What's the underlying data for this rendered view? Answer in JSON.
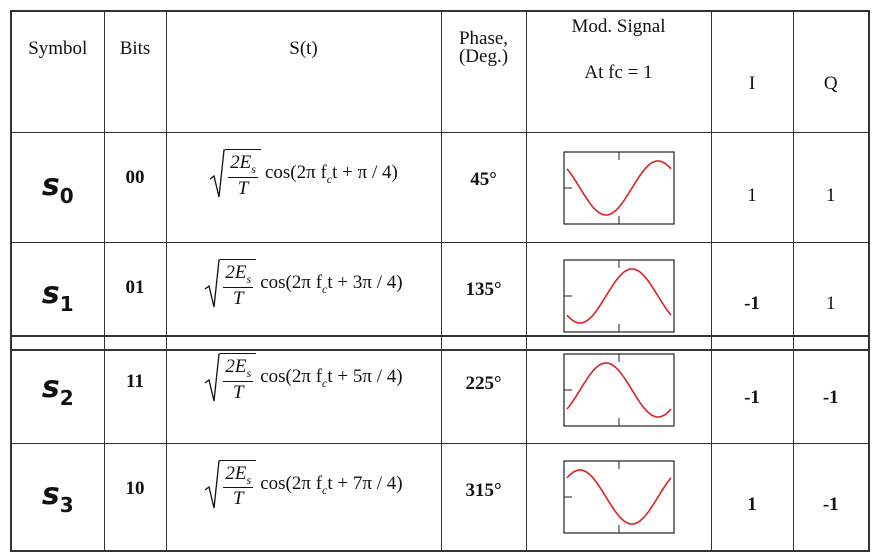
{
  "header": {
    "symbol": "Symbol",
    "bits": "Bits",
    "signal": "S(t)",
    "phase": [
      "Phase,",
      "(Deg.)"
    ],
    "mod_signal": [
      "Mod. Signal",
      "At fc = 1"
    ],
    "i": "I",
    "q": "Q"
  },
  "rows": [
    {
      "symbol": {
        "base": "s",
        "sub": "0"
      },
      "bits": "00",
      "formula": {
        "num": "2E",
        "num_sub": "s",
        "den": "T",
        "expr": "cos(2π f",
        "expr_sub": "c",
        "expr_tail": "t + π / 4)"
      },
      "phase": "45°",
      "i": "1",
      "q": "1"
    },
    {
      "symbol": {
        "base": "s",
        "sub": "1"
      },
      "bits": "01",
      "formula": {
        "num": "2E",
        "num_sub": "s",
        "den": "T",
        "expr": "cos(2π f",
        "expr_sub": "c",
        "expr_tail": "t + 3π / 4)"
      },
      "phase": "135°",
      "i": "-1",
      "q": "1"
    },
    {
      "symbol": {
        "base": "s",
        "sub": "2"
      },
      "bits": "11",
      "formula": {
        "num": "2E",
        "num_sub": "s",
        "den": "T",
        "expr": "cos(2π f",
        "expr_sub": "c",
        "expr_tail": "t + 5π / 4)"
      },
      "phase": "225°",
      "i": "-1",
      "q": "-1"
    },
    {
      "symbol": {
        "base": "s",
        "sub": "3"
      },
      "bits": "10",
      "formula": {
        "num": "2E",
        "num_sub": "s",
        "den": "T",
        "expr": "cos(2π f",
        "expr_sub": "c",
        "expr_tail": "t + 7π / 4)"
      },
      "phase": "315°",
      "i": "1",
      "q": "-1"
    }
  ]
}
